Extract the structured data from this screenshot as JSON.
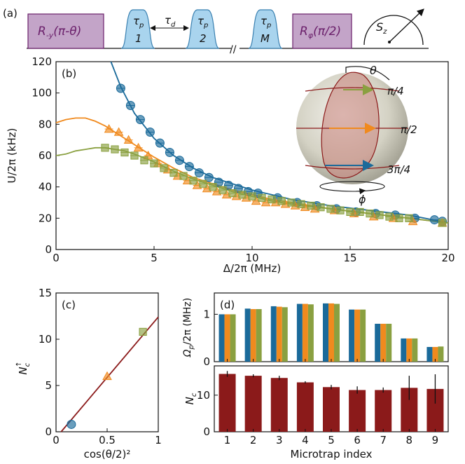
{
  "colors": {
    "blue": "#1a6a9a",
    "orange": "#f08a1e",
    "green": "#8aa040",
    "darkred": "#8b1a1a",
    "purple_box": "#c3a4c8",
    "purple_edge": "#6a1f6a",
    "light_blue": "#a9d4ee",
    "light_blue_edge": "#3a80b0"
  },
  "panel_a": {
    "label": "(a)",
    "box_left": "R",
    "box_left_sub": "-y",
    "box_left_arg": "(π-θ)",
    "pulse1_sym": "τ",
    "pulse1_sub": "p",
    "pulse1_num": "1",
    "delay_sym": "τ",
    "delay_sub": "d",
    "pulse2_sym": "τ",
    "pulse2_sub": "p",
    "pulse2_num": "2",
    "pulseM_sym": "τ",
    "pulseM_sub": "p",
    "pulseM_num": "M",
    "box_right": "R",
    "box_right_sub": "φ",
    "box_right_arg": "(π/2)",
    "meter_sym": "S",
    "meter_sub": "z"
  },
  "panel_b": {
    "label": "(b)",
    "ylabel": "U/2π (kHz)",
    "xlabel": "Δ/2π (MHz)",
    "sphere_theta": "θ",
    "sphere_phi": "ϕ",
    "sphere_labels": [
      "π/4",
      "π/2",
      "3π/4"
    ]
  },
  "panel_c": {
    "label": "(c)",
    "ylabel_main": "N",
    "ylabel_sub": "c",
    "ylabel_sup": "↑",
    "xlabel": "cos(θ/2)²"
  },
  "panel_d": {
    "label": "(d)",
    "top_ylabel_main": "Ω",
    "top_ylabel_sub": "p",
    "top_ylabel_rest": "/2π (MHz)",
    "bottom_ylabel_main": "N",
    "bottom_ylabel_sub": "c",
    "xlabel": "Microtrap index"
  },
  "chart_data": [
    {
      "type": "scatter",
      "panel": "b",
      "xlim": [
        0,
        20
      ],
      "ylim": [
        0,
        120
      ],
      "xticks": [
        "0",
        "5",
        "10",
        "15",
        "20"
      ],
      "yticks": [
        "0",
        "20",
        "40",
        "60",
        "80",
        "100",
        "120"
      ],
      "series": [
        {
          "color": "blue",
          "marker": "circle",
          "x": [
            3.3,
            3.8,
            4.3,
            4.8,
            5.3,
            5.8,
            6.3,
            6.8,
            7.3,
            7.8,
            8.3,
            8.8,
            9.3,
            9.8,
            10.3,
            11.3,
            12.3,
            13.3,
            14.3,
            15.3,
            16.3,
            17.3,
            18.3,
            19.3,
            19.7
          ],
          "y": [
            103,
            92,
            83,
            75,
            68,
            62,
            57,
            53,
            49,
            46,
            43,
            41,
            39,
            37,
            36,
            33,
            30,
            28,
            26,
            24,
            23,
            22,
            20,
            19,
            18
          ]
        },
        {
          "color": "orange",
          "marker": "triangle",
          "x": [
            2.7,
            3.2,
            3.7,
            4.2,
            4.7,
            5.2,
            5.7,
            6.2,
            6.7,
            7.2,
            7.7,
            8.2,
            8.7,
            9.2,
            9.7,
            10.2,
            10.7,
            11.2,
            11.7,
            12.2,
            12.7,
            13.2,
            14.2,
            15.2,
            16.2,
            17.2,
            18.2,
            19.7
          ],
          "y": [
            77,
            75,
            70,
            65,
            60,
            55,
            51,
            47,
            44,
            41,
            39,
            37,
            35,
            34,
            33,
            31,
            30,
            30,
            29,
            28,
            27,
            26,
            25,
            23,
            21,
            20,
            18,
            17
          ]
        },
        {
          "color": "green",
          "marker": "square",
          "x": [
            2.5,
            3.0,
            3.5,
            4.0,
            4.5,
            5.0,
            5.5,
            6.0,
            6.5,
            7.0,
            7.5,
            8.0,
            8.5,
            9.0,
            9.5,
            10.0,
            10.5,
            11.0,
            11.5,
            12.0,
            12.5,
            13.0,
            13.5,
            14.0,
            14.5,
            15.0,
            15.5,
            16.0,
            16.5,
            17.0,
            17.5,
            18.0,
            19.7
          ],
          "y": [
            65,
            64,
            62,
            60,
            57,
            55,
            52,
            49,
            47,
            44,
            42,
            40,
            38,
            36,
            35,
            34,
            33,
            32,
            31,
            30,
            29,
            28,
            27,
            26,
            25,
            24,
            24,
            23,
            22,
            21,
            20,
            20,
            17
          ]
        }
      ],
      "fits": [
        {
          "color": "blue",
          "x": [
            2.8,
            3.3,
            4,
            5,
            6,
            7,
            8,
            9,
            10,
            11,
            12,
            14,
            16,
            18,
            20
          ],
          "y": [
            120,
            104,
            87,
            71,
            60,
            52,
            46,
            42,
            38,
            35,
            32,
            28,
            25,
            22,
            17
          ]
        },
        {
          "color": "orange",
          "x": [
            0,
            0.5,
            1,
            1.5,
            2,
            2.5,
            3,
            3.5,
            4,
            5,
            6,
            7,
            8,
            9,
            10,
            11,
            12,
            14,
            16,
            18,
            20
          ],
          "y": [
            81,
            83,
            84,
            84,
            82,
            79,
            75,
            71,
            67,
            59,
            52,
            46,
            42,
            38,
            35,
            32,
            30,
            26,
            23,
            20,
            17
          ]
        },
        {
          "color": "green",
          "x": [
            0,
            0.5,
            1,
            1.5,
            2,
            2.5,
            3,
            3.5,
            4,
            5,
            6,
            7,
            8,
            9,
            10,
            11,
            12,
            14,
            16,
            18,
            20
          ],
          "y": [
            60,
            61,
            63,
            64,
            65,
            65,
            64,
            63,
            61,
            56,
            50,
            45,
            41,
            37,
            34,
            31,
            29,
            26,
            23,
            20,
            17
          ]
        }
      ]
    },
    {
      "type": "scatter",
      "panel": "c",
      "xlim": [
        0,
        1
      ],
      "ylim": [
        0,
        15
      ],
      "xticks": [
        "0",
        "0.5",
        "1"
      ],
      "yticks": [
        "0",
        "5",
        "10",
        "15"
      ],
      "points": [
        {
          "x": 0.15,
          "y": 0.8,
          "color": "blue",
          "marker": "circle"
        },
        {
          "x": 0.5,
          "y": 6.0,
          "color": "orange",
          "marker": "triangle"
        },
        {
          "x": 0.85,
          "y": 10.8,
          "color": "green",
          "marker": "square"
        }
      ],
      "fit_line": {
        "x": [
          0.05,
          1.0
        ],
        "y": [
          0.0,
          12.4
        ],
        "color": "darkred"
      }
    },
    {
      "type": "bar",
      "panel": "d-top",
      "categories": [
        "1",
        "2",
        "3",
        "4",
        "5",
        "6",
        "7",
        "8",
        "9"
      ],
      "ylim": [
        0,
        1.45
      ],
      "yticks": [
        "0",
        "1"
      ],
      "series": [
        {
          "color": "blue",
          "values": [
            1.0,
            1.12,
            1.17,
            1.22,
            1.23,
            1.1,
            0.8,
            0.49,
            0.31
          ]
        },
        {
          "color": "orange",
          "values": [
            1.0,
            1.11,
            1.16,
            1.22,
            1.23,
            1.1,
            0.8,
            0.49,
            0.31
          ]
        },
        {
          "color": "green",
          "values": [
            1.0,
            1.11,
            1.15,
            1.21,
            1.22,
            1.1,
            0.8,
            0.49,
            0.32
          ]
        }
      ]
    },
    {
      "type": "bar",
      "panel": "d-bottom",
      "categories": [
        "1",
        "2",
        "3",
        "4",
        "5",
        "6",
        "7",
        "8",
        "9"
      ],
      "ylim": [
        0,
        18
      ],
      "yticks": [
        "0",
        "10"
      ],
      "series": [
        {
          "color": "darkred",
          "values": [
            15.8,
            15.3,
            14.7,
            13.5,
            12.2,
            11.4,
            11.4,
            12.0,
            11.7
          ],
          "errors": [
            0.8,
            0.4,
            0.6,
            0.3,
            0.6,
            1.0,
            0.7,
            3.3,
            4.0
          ]
        }
      ]
    }
  ]
}
